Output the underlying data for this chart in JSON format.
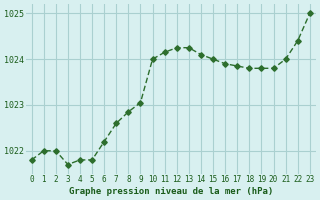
{
  "hours": [
    0,
    1,
    2,
    3,
    4,
    5,
    6,
    7,
    8,
    9,
    10,
    11,
    12,
    13,
    14,
    15,
    16,
    17,
    18,
    19,
    20,
    21,
    22,
    23
  ],
  "pressure": [
    1021.8,
    1022.0,
    1022.0,
    1021.7,
    1021.8,
    1021.8,
    1022.2,
    1022.6,
    1022.85,
    1023.05,
    1024.0,
    1024.15,
    1024.25,
    1024.25,
    1024.1,
    1024.0,
    1023.9,
    1023.85,
    1023.8,
    1023.8,
    1023.8,
    1024.0,
    1024.4,
    1025.0
  ],
  "line_color": "#2d6e2d",
  "marker_color": "#2d6e2d",
  "bg_color": "#d8f0f0",
  "grid_color": "#aad0d0",
  "xlabel": "Graphe pression niveau de la mer (hPa)",
  "xlabel_color": "#1a5c1a",
  "tick_color": "#1a5c1a",
  "ylim": [
    1021.5,
    1025.2
  ],
  "yticks": [
    1022,
    1023,
    1024,
    1025
  ],
  "xticks": [
    0,
    1,
    2,
    3,
    4,
    5,
    6,
    7,
    8,
    9,
    10,
    11,
    12,
    13,
    14,
    15,
    16,
    17,
    18,
    19,
    20,
    21,
    22,
    23
  ]
}
